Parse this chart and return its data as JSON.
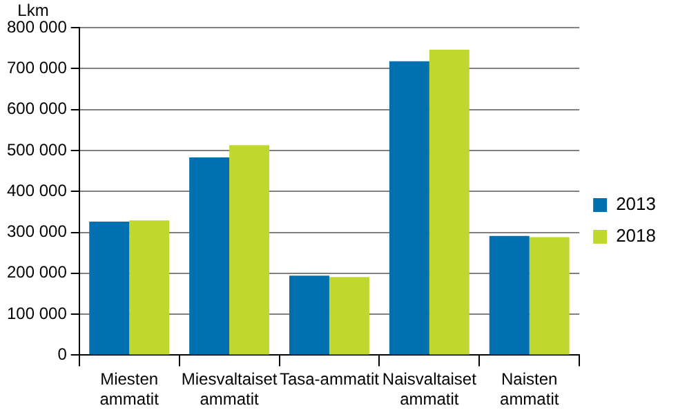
{
  "chart_data": {
    "type": "bar",
    "ylabel": "Lkm",
    "categories": [
      "Miesten ammatit",
      "Miesvaltaiset ammatit",
      "Tasa-ammatit",
      "Naisvaltaiset ammatit",
      "Naisten ammatit"
    ],
    "series": [
      {
        "name": "2013",
        "color": "#0070b0",
        "values": [
          326000,
          483000,
          194000,
          718000,
          291000
        ]
      },
      {
        "name": "2018",
        "color": "#c0d72f",
        "values": [
          329000,
          513000,
          191000,
          746000,
          288000
        ]
      }
    ],
    "ylim": [
      0,
      800000
    ],
    "yticks": [
      {
        "value": 0,
        "label": "0"
      },
      {
        "value": 100000,
        "label": "100 000"
      },
      {
        "value": 200000,
        "label": "200 000"
      },
      {
        "value": 300000,
        "label": "300 000"
      },
      {
        "value": 400000,
        "label": "400 000"
      },
      {
        "value": 500000,
        "label": "500 000"
      },
      {
        "value": 600000,
        "label": "600 000"
      },
      {
        "value": 700000,
        "label": "700 000"
      },
      {
        "value": 800000,
        "label": "800 000"
      }
    ],
    "grid": "y",
    "legend": "right"
  }
}
